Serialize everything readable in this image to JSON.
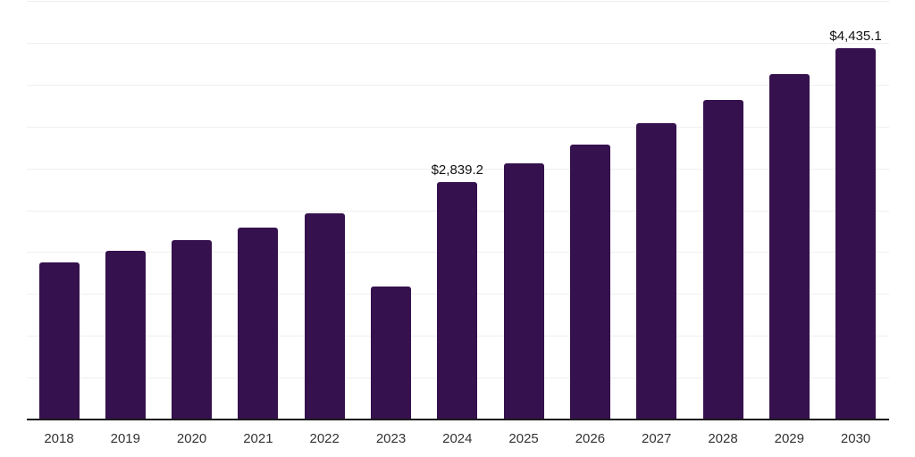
{
  "chart_data": {
    "type": "bar",
    "title": "",
    "xlabel": "",
    "ylabel": "",
    "categories": [
      "2018",
      "2019",
      "2020",
      "2021",
      "2022",
      "2023",
      "2024",
      "2025",
      "2026",
      "2027",
      "2028",
      "2029",
      "2030"
    ],
    "values": [
      1876,
      2015,
      2143,
      2292,
      2463,
      1589,
      2839.2,
      3060,
      3284,
      3539,
      3817,
      4126,
      4435.1
    ],
    "annotations": [
      {
        "category": "2024",
        "text": "$2,839.2"
      },
      {
        "category": "2030",
        "text": "$4,435.1"
      }
    ],
    "ylim": [
      0,
      5000
    ],
    "gridline_step": 500,
    "grid": "horizontal",
    "y_axis_labels": "none",
    "legend": "none",
    "colors": {
      "bar": "#35114E",
      "gridline": "#efefef",
      "axis_line": "#1a1a1a",
      "tick_label": "#333333",
      "data_label": "#111111",
      "background": "#ffffff"
    }
  }
}
